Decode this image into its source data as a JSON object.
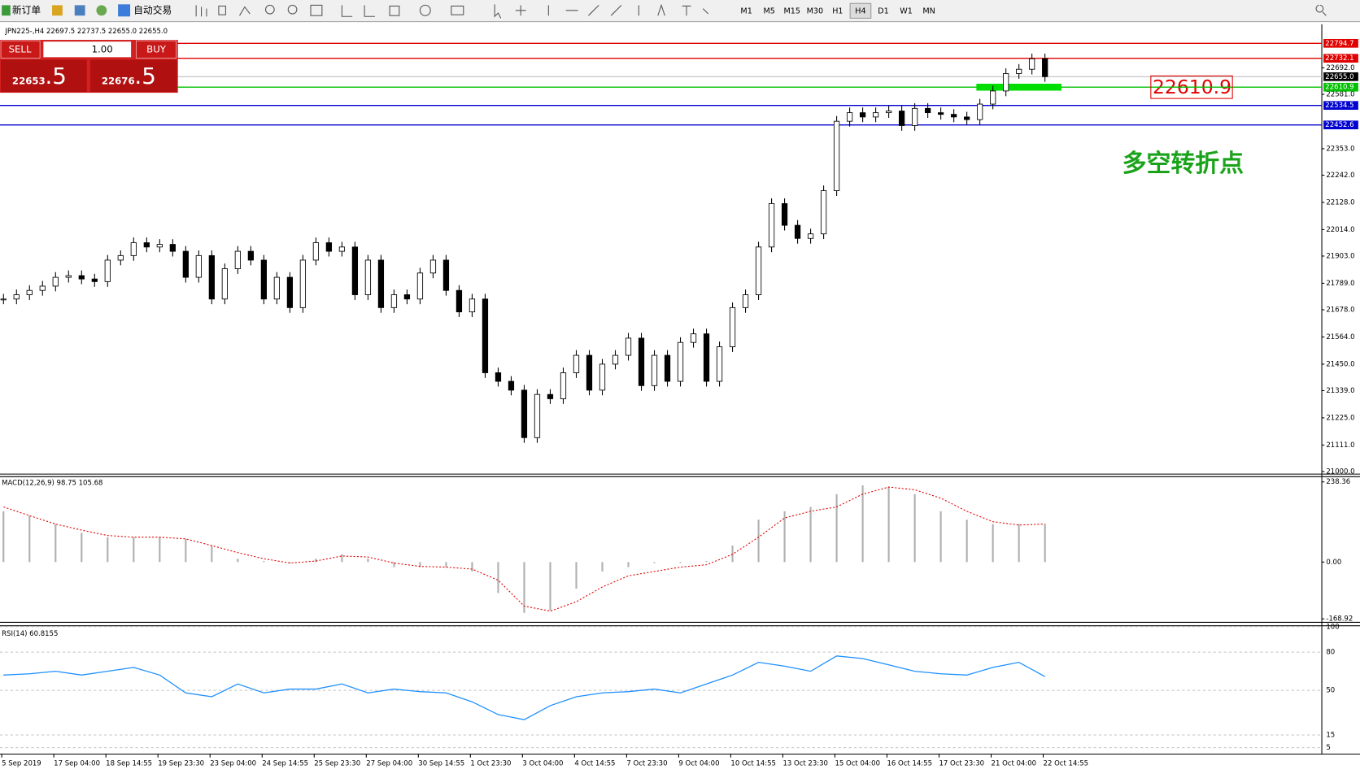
{
  "toolbar": {
    "new_order": "新订单",
    "auto_trading": "自动交易",
    "timeframes": [
      "M1",
      "M5",
      "M15",
      "M30",
      "H1",
      "H4",
      "D1",
      "W1",
      "MN"
    ]
  },
  "trade_panel": {
    "sell": "SELL",
    "lots": "1.00",
    "buy": "BUY",
    "sell_price": {
      "big": "22653",
      "small": ".5"
    },
    "buy_price": {
      "big": "22676",
      "small": ".5"
    }
  },
  "chart": {
    "header": "JPN225-,H4  22697.5 22737.5 22655.0 22655.0",
    "ylim": [
      21000,
      22794.7
    ],
    "yticks": [
      {
        "value": 22692,
        "label": "22692.0"
      },
      {
        "value": 22581,
        "label": "22581.0"
      },
      {
        "value": 22353,
        "label": "22353.0"
      },
      {
        "value": 22242,
        "label": "22242.0"
      },
      {
        "value": 22128,
        "label": "22128.0"
      },
      {
        "value": 22014,
        "label": "22014.0"
      },
      {
        "value": 21903,
        "label": "21903.0"
      },
      {
        "value": 21789,
        "label": "21789.0"
      },
      {
        "value": 21678,
        "label": "21678.0"
      },
      {
        "value": 21564,
        "label": "21564.0"
      },
      {
        "value": 21450,
        "label": "21450.0"
      },
      {
        "value": 21339,
        "label": "21339.0"
      },
      {
        "value": 21225,
        "label": "21225.0"
      },
      {
        "value": 21111,
        "label": "21111.0"
      },
      {
        "value": 21000,
        "label": "21000.0"
      }
    ],
    "levels": [
      {
        "value": 22794.7,
        "color": "#e00000"
      },
      {
        "value": 22732.1,
        "color": "#e00000"
      },
      {
        "value": 22610.9,
        "color": "#00c000"
      },
      {
        "value": 22534.5,
        "color": "#0000d0"
      },
      {
        "value": 22452.6,
        "color": "#0000d0"
      }
    ],
    "current": {
      "value": 22655,
      "label": "22655.0"
    },
    "closes": [
      21723,
      21741,
      21759,
      21777,
      21814,
      21821,
      21807,
      21796,
      21886,
      21905,
      21959,
      21941,
      21952,
      21923,
      21814,
      21905,
      21723,
      21850,
      21923,
      21886,
      21723,
      21814,
      21687,
      21886,
      21959,
      21923,
      21941,
      21741,
      21886,
      21687,
      21741,
      21723,
      21832,
      21886,
      21759,
      21669,
      21723,
      21414,
      21378,
      21341,
      21142,
      21323,
      21305,
      21414,
      21487,
      21341,
      21450,
      21487,
      21559,
      21360,
      21487,
      21378,
      21541,
      21577,
      21378,
      21523,
      21687,
      21741,
      21941,
      22123,
      22032,
      21977,
      21996,
      22177,
      22468,
      22504,
      22486,
      22504,
      22511,
      22450,
      22522,
      22504,
      22497,
      22486,
      22475,
      22540,
      22595,
      22668,
      22686,
      22730,
      22655
    ],
    "annotations": {
      "price": "22610.9",
      "note": "多空转折点"
    },
    "x_labels": [
      "5 Sep 2019",
      "17 Sep 04:00",
      "18 Sep 14:55",
      "19 Sep 23:30",
      "23 Sep 04:00",
      "24 Sep 14:55",
      "25 Sep 23:30",
      "27 Sep 04:00",
      "30 Sep 14:55",
      "1 Oct 23:30",
      "3 Oct 04:00",
      "4 Oct 14:55",
      "7 Oct 23:30",
      "9 Oct 04:00",
      "10 Oct 14:55",
      "13 Oct 23:30",
      "15 Oct 04:00",
      "16 Oct 14:55",
      "17 Oct 23:30",
      "21 Oct 04:00",
      "22 Oct 14:55"
    ]
  },
  "macd": {
    "label": "MACD(12,26,9) 98.75 105.68",
    "ylim": [
      -168.92,
      238.36
    ],
    "yticks": [
      238.36,
      {
        "value": 0,
        "label": "0.00"
      },
      -168.92
    ],
    "histogram": [
      151,
      138,
      113,
      87,
      74,
      74,
      74,
      69,
      49,
      10,
      3,
      -3,
      10,
      23,
      10,
      -15,
      -15,
      -15,
      -28,
      -92,
      -151,
      -144,
      -79,
      -28,
      -15,
      -3,
      -3,
      3,
      49,
      126,
      151,
      164,
      202,
      228,
      223,
      202,
      151,
      126,
      113,
      113,
      113
    ],
    "signal": [
      164,
      138,
      113,
      95,
      79,
      74,
      74,
      69,
      49,
      28,
      10,
      -3,
      3,
      18,
      15,
      -3,
      -13,
      -15,
      -21,
      -54,
      -131,
      -146,
      -118,
      -74,
      -41,
      -28,
      -15,
      -8,
      23,
      74,
      131,
      151,
      164,
      202,
      223,
      215,
      190,
      151,
      120,
      110,
      113
    ]
  },
  "rsi": {
    "label": "RSI(14) 60.8155",
    "ylim": [
      0,
      100
    ],
    "yticks": [
      100,
      80,
      50,
      15,
      5
    ],
    "values": [
      62,
      63,
      65,
      62,
      65,
      68,
      62,
      48,
      45,
      55,
      48,
      51,
      51,
      55,
      48,
      51,
      49,
      48,
      41,
      31,
      27,
      38,
      45,
      48,
      49,
      51,
      48,
      55,
      62,
      72,
      69,
      65,
      77,
      75,
      70,
      65,
      63,
      62,
      68,
      72,
      60.8155
    ]
  }
}
